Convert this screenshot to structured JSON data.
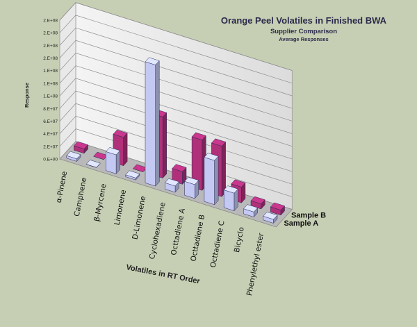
{
  "chart_data": {
    "type": "bar",
    "title": "Orange Peel Volatiles in Finished BWA",
    "subtitle": "Supplier Comparison",
    "subtitle2": "Average Responses",
    "xlabel": "Volatiles in RT Order",
    "ylabel": "Response",
    "y_ticks": [
      "0.E+00",
      "2.E+07",
      "4.E+07",
      "6.E+07",
      "8.E+07",
      "1.E+08",
      "1.E+08",
      "1.E+08",
      "2.E+08",
      "2.E+08",
      "2.E+08",
      "2.E+08"
    ],
    "ylim": [
      0,
      220000000
    ],
    "categories": [
      "α-Pinene",
      "Camphene",
      "β-Myrcene",
      "Limonene",
      "D-Limonene",
      "Cyclohexadiene",
      "Octtadiene A",
      "Octtadiene B",
      "Octtadiene  C",
      "Bicyclo",
      "Phenylethyl ester"
    ],
    "series": [
      {
        "name": "Sample A",
        "color": "#c3c9f2",
        "values": [
          4000000,
          300000,
          30000000,
          3000000,
          192000000,
          10000000,
          22000000,
          70000000,
          28000000,
          8000000,
          6000000
        ]
      },
      {
        "name": "Sample B",
        "color": "#b0307a",
        "values": [
          7000000,
          0,
          45000000,
          0,
          97000000,
          20000000,
          80000000,
          80000000,
          25000000,
          8000000,
          8000000
        ]
      }
    ]
  }
}
